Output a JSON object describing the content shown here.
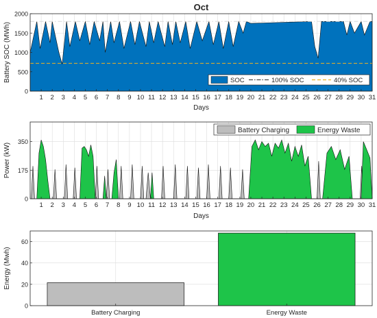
{
  "chart_data": [
    {
      "type": "area",
      "title": "Oct",
      "xlabel": "Days",
      "ylabel": "Battery SOC (MWh)",
      "xlim": [
        0,
        31
      ],
      "ylim": [
        0,
        2000
      ],
      "x_ticks": [
        1,
        2,
        3,
        4,
        5,
        6,
        7,
        8,
        9,
        10,
        11,
        12,
        13,
        14,
        15,
        16,
        17,
        18,
        19,
        20,
        21,
        22,
        23,
        24,
        25,
        26,
        27,
        28,
        29,
        30,
        31
      ],
      "y_ticks": [
        0,
        500,
        1000,
        1500,
        2000
      ],
      "grid": true,
      "legend_position": "bottom-right",
      "series": [
        {
          "name": "SOC",
          "style": "filled area",
          "color": "#0072BD",
          "x": [
            0,
            0.6,
            0.9,
            1.4,
            1.8,
            2.0,
            2.6,
            2.9,
            3.3,
            3.6,
            4.1,
            4.5,
            5.0,
            5.4,
            5.8,
            6.3,
            6.6,
            6.8,
            7.3,
            7.6,
            8.1,
            8.5,
            9.1,
            9.5,
            9.9,
            10.5,
            10.8,
            11.2,
            11.6,
            12.2,
            12.5,
            12.9,
            13.2,
            13.6,
            14.1,
            14.5,
            15.1,
            15.6,
            16.2,
            16.6,
            17.1,
            17.5,
            18.0,
            18.4,
            18.9,
            19.3,
            19.6,
            20.0,
            25.5,
            25.8,
            26.1,
            26.4,
            27,
            28.4,
            28.7,
            29,
            29.4,
            30,
            30.3,
            30.8,
            31
          ],
          "y": [
            1000,
            1800,
            1100,
            1800,
            1250,
            1800,
            1000,
            700,
            1800,
            1150,
            1800,
            1300,
            1800,
            1200,
            1800,
            1300,
            1800,
            1000,
            1800,
            1250,
            1800,
            1100,
            1800,
            1200,
            1800,
            1150,
            1800,
            1250,
            1800,
            1150,
            1800,
            1200,
            1800,
            1250,
            1800,
            1100,
            1800,
            1300,
            1800,
            1200,
            1800,
            1100,
            1800,
            1150,
            1800,
            1500,
            1800,
            1750,
            1800,
            1150,
            850,
            1800,
            1800,
            1800,
            1450,
            1800,
            1500,
            1800,
            1450,
            1800,
            1800
          ]
        },
        {
          "name": "100% SOC",
          "style": "dash-dot line",
          "color": "#262626",
          "y_const": 1800
        },
        {
          "name": "40% SOC",
          "style": "dashed line",
          "color": "#EDB120",
          "y_const": 720
        }
      ]
    },
    {
      "type": "area",
      "xlabel": "Days",
      "ylabel": "Power (kW)",
      "xlim": [
        0,
        31
      ],
      "ylim": [
        0,
        470
      ],
      "x_ticks": [
        1,
        2,
        3,
        4,
        5,
        6,
        7,
        8,
        9,
        10,
        11,
        12,
        13,
        14,
        15,
        16,
        17,
        18,
        19,
        20,
        21,
        22,
        23,
        24,
        25,
        26,
        27,
        28,
        29,
        30,
        31
      ],
      "y_ticks": [
        0,
        175,
        350
      ],
      "grid": true,
      "legend_position": "top",
      "series": [
        {
          "name": "Battery Charging",
          "style": "filled area",
          "color": "#BDBDBD",
          "x": [
            0.1,
            0.25,
            0.4,
            1.2,
            1.35,
            1.5,
            2.1,
            2.25,
            2.4,
            3.1,
            3.25,
            3.4,
            3.9,
            4.05,
            4.2,
            5.9,
            6.05,
            6.2,
            6.9,
            7.05,
            7.2,
            8.1,
            8.25,
            8.4,
            9.1,
            9.25,
            9.4,
            10.0,
            10.15,
            10.3,
            10.5,
            10.7,
            10.9,
            11.9,
            12.05,
            12.2,
            13.0,
            13.15,
            13.3,
            14.1,
            14.25,
            14.4,
            15.1,
            15.25,
            15.4,
            16.0,
            16.15,
            16.3,
            17.1,
            17.25,
            17.4,
            18.0,
            18.15,
            18.3,
            19.1,
            19.25,
            19.4,
            26.0,
            26.15,
            26.3,
            29.9,
            30.05,
            30.2
          ],
          "y": [
            0,
            200,
            0,
            0,
            150,
            0,
            0,
            180,
            0,
            0,
            210,
            0,
            0,
            190,
            0,
            0,
            200,
            0,
            0,
            180,
            0,
            0,
            200,
            0,
            0,
            210,
            0,
            0,
            200,
            0,
            0,
            160,
            0,
            0,
            200,
            0,
            0,
            210,
            0,
            0,
            200,
            0,
            0,
            190,
            0,
            0,
            210,
            0,
            0,
            200,
            0,
            0,
            190,
            0,
            0,
            180,
            0,
            0,
            230,
            0,
            0,
            200,
            0
          ]
        },
        {
          "name": "Energy Waste",
          "style": "filled area",
          "color": "#1EC449",
          "x": [
            0.6,
            0.8,
            1.0,
            1.2,
            1.4,
            1.6,
            1.8,
            4.5,
            4.7,
            4.9,
            5.1,
            5.3,
            5.5,
            5.7,
            5.9,
            6.6,
            6.75,
            6.9,
            7.4,
            7.6,
            7.8,
            8.0,
            10.9,
            11.05,
            11.2,
            19.8,
            20.1,
            20.4,
            20.7,
            21.0,
            21.3,
            21.6,
            21.9,
            22.2,
            22.5,
            22.8,
            23.1,
            23.4,
            23.7,
            24.0,
            24.3,
            24.6,
            24.9,
            25.2,
            25.5,
            26.5,
            26.9,
            27.3,
            27.7,
            28.1,
            28.5,
            28.9,
            29.2,
            30.0,
            30.2,
            30.5,
            30.8,
            31.0
          ],
          "y": [
            0,
            280,
            360,
            320,
            240,
            110,
            0,
            0,
            310,
            320,
            300,
            260,
            330,
            260,
            0,
            0,
            140,
            0,
            0,
            160,
            240,
            0,
            0,
            160,
            0,
            0,
            320,
            360,
            300,
            350,
            320,
            340,
            260,
            340,
            310,
            360,
            280,
            340,
            230,
            320,
            260,
            330,
            200,
            260,
            0,
            0,
            280,
            320,
            240,
            300,
            180,
            260,
            0,
            0,
            350,
            300,
            250,
            0
          ]
        }
      ]
    },
    {
      "type": "bar",
      "ylabel": "Energy (Mwh)",
      "categories": [
        "Battery Charging",
        "Energy Waste"
      ],
      "values": [
        21.5,
        68
      ],
      "colors": [
        "#BDBDBD",
        "#1EC449"
      ],
      "ylim": [
        0,
        70
      ],
      "y_ticks": [
        0,
        20,
        40,
        60
      ],
      "grid": true
    }
  ]
}
